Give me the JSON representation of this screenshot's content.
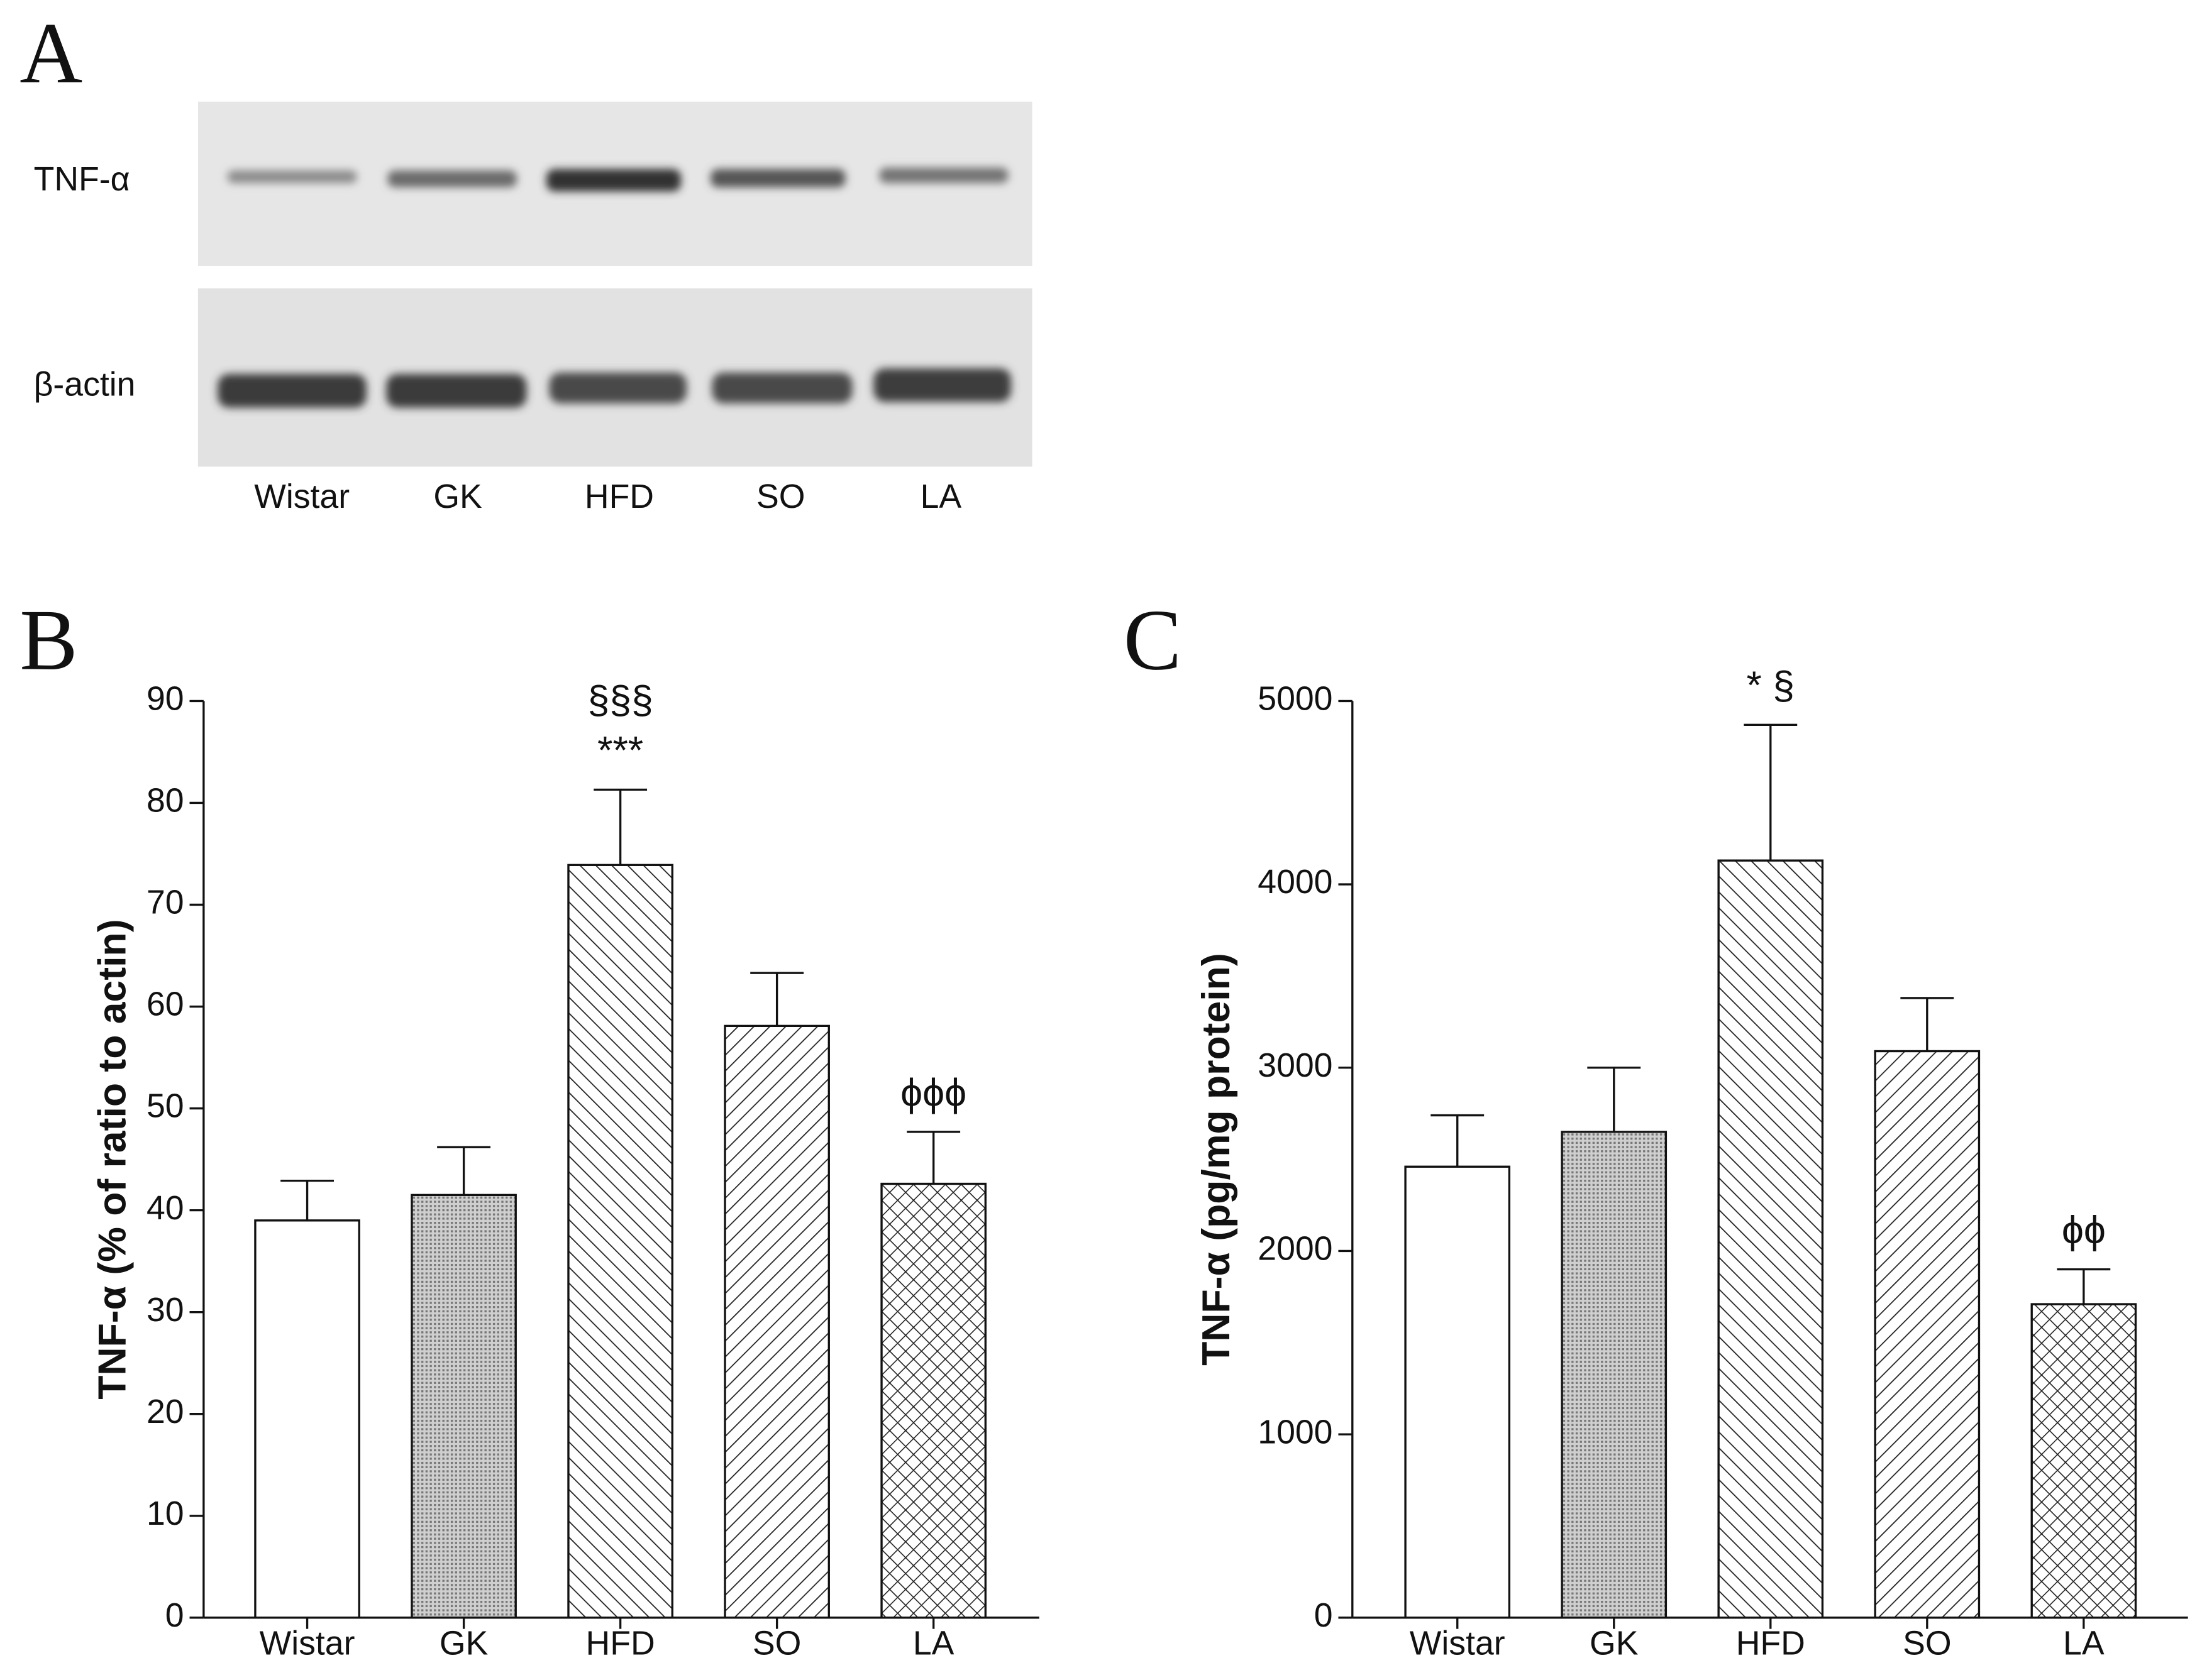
{
  "blot": {
    "panel_label": "A",
    "rows": [
      "TNF-α",
      "β-actin"
    ],
    "lanes": [
      "Wistar",
      "GK",
      "HFD",
      "SO",
      "LA"
    ]
  },
  "chart_data": [
    {
      "type": "bar",
      "panel_label": "B",
      "y_label": "TNF-α (% of ratio to actin)",
      "categories": [
        "Wistar",
        "GK",
        "HFD",
        "SO",
        "LA"
      ],
      "values": [
        39,
        41.5,
        73.9,
        58.1,
        42.6
      ],
      "errors": [
        3.9,
        4.7,
        7.4,
        5.2,
        5.1
      ],
      "annotations": [
        null,
        null,
        [
          "§§§",
          "***"
        ],
        null,
        [
          "ϕϕϕ"
        ]
      ],
      "hatches": [
        "none",
        "dots",
        "back-hatch",
        "hatch",
        "cross-hatch"
      ],
      "ylim": [
        0,
        90
      ],
      "yticks": [
        0,
        10,
        20,
        30,
        40,
        50,
        60,
        70,
        80,
        90
      ]
    },
    {
      "type": "bar",
      "panel_label": "C",
      "y_label": "TNF-α (pg/mg protein)",
      "categories": [
        "Wistar",
        "GK",
        "HFD",
        "SO",
        "LA"
      ],
      "values": [
        2460,
        2650,
        4130,
        3090,
        1710
      ],
      "errors": [
        280,
        350,
        740,
        290,
        190
      ],
      "annotations": [
        null,
        null,
        [
          "* §"
        ],
        null,
        [
          "ϕϕ"
        ]
      ],
      "hatches": [
        "none",
        "dots",
        "back-hatch",
        "hatch",
        "cross-hatch"
      ],
      "ylim": [
        0,
        5000
      ],
      "yticks": [
        0,
        1000,
        2000,
        3000,
        4000,
        5000
      ]
    }
  ]
}
